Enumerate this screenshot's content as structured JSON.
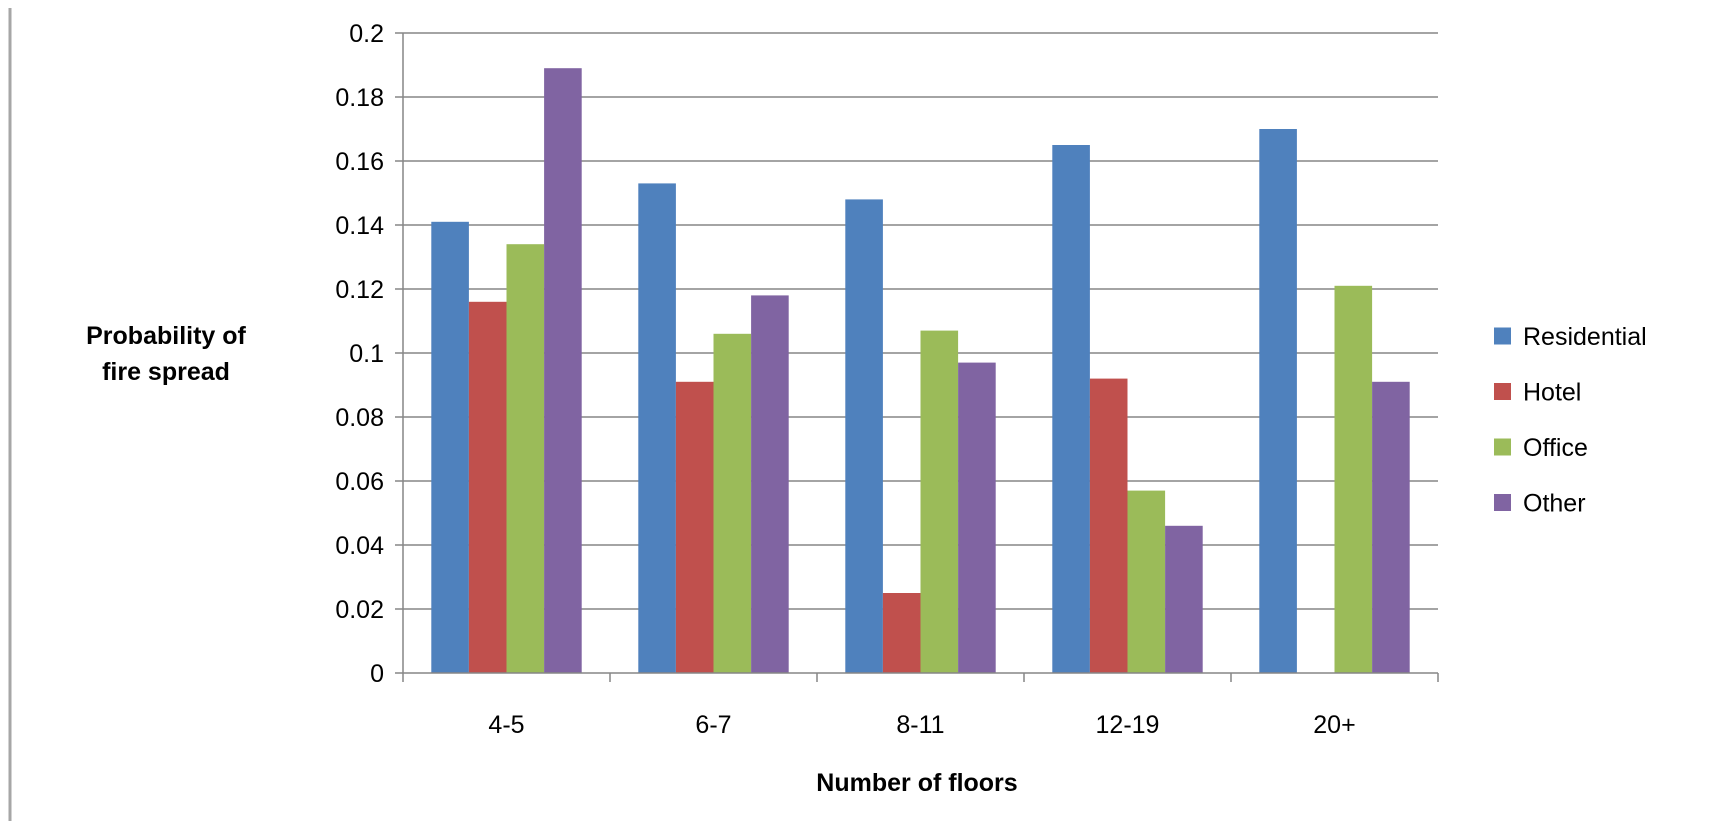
{
  "chart_data": {
    "type": "bar",
    "title": "",
    "xlabel": "Number of floors",
    "ylabel_lines": [
      "Probability of",
      "fire spread"
    ],
    "categories": [
      "4-5",
      "6-7",
      "8-11",
      "12-19",
      "20+"
    ],
    "ylim": [
      0,
      0.2
    ],
    "yticks": [
      0,
      0.02,
      0.04,
      0.06,
      0.08,
      0.1,
      0.12,
      0.14,
      0.16,
      0.18,
      0.2
    ],
    "ytick_labels": [
      "0",
      "0.02",
      "0.04",
      "0.06",
      "0.08",
      "0.1",
      "0.12",
      "0.14",
      "0.16",
      "0.18",
      "0.2"
    ],
    "grid": true,
    "legend_position": "right",
    "series": [
      {
        "name": "Residential",
        "color": "#4f81bd",
        "values": [
          0.141,
          0.153,
          0.148,
          0.165,
          0.17
        ]
      },
      {
        "name": "Hotel",
        "color": "#c0504d",
        "values": [
          0.116,
          0.091,
          0.025,
          0.092,
          0
        ]
      },
      {
        "name": "Office",
        "color": "#9bbb59",
        "values": [
          0.134,
          0.106,
          0.107,
          0.057,
          0.121
        ]
      },
      {
        "name": "Other",
        "color": "#8064a2",
        "values": [
          0.189,
          0.118,
          0.097,
          0.046,
          0.091
        ]
      }
    ],
    "colors": {
      "gridline": "#868686",
      "axis": "#868686",
      "frame": "#a6a6a6"
    }
  }
}
